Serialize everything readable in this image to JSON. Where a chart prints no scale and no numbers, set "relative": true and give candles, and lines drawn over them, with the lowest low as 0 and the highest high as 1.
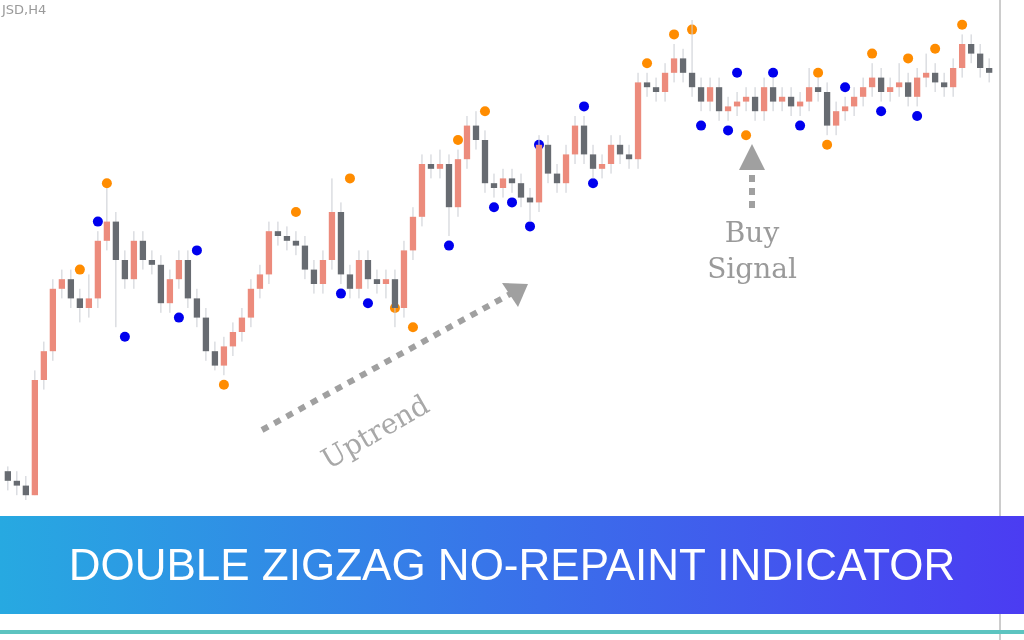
{
  "chart_data": {
    "type": "candlestick",
    "title": "DOUBLE ZIGZAG NO-REPAINT INDICATOR",
    "relative": true,
    "annotations": [
      "JSD,H4",
      "Uptrend",
      "Buy Signal"
    ],
    "colors": [
      "#676b71",
      "#676b71",
      "#676b71",
      "#ec8b7c",
      "#ec8b7c",
      "#ec8b7c",
      "#ec8b7c",
      "#676b71",
      "#676b71",
      "#ec8b7c",
      "#ec8b7c",
      "#ec8b7c",
      "#676b71",
      "#676b71",
      "#ec8b7c",
      "#676b71",
      "#676b71",
      "#676b71",
      "#ec8b7c",
      "#ec8b7c",
      "#676b71",
      "#676b71",
      "#676b71",
      "#676b71",
      "#ec8b7c",
      "#ec8b7c",
      "#ec8b7c",
      "#ec8b7c",
      "#ec8b7c",
      "#ec8b7c",
      "#676b71",
      "#676b71",
      "#676b71",
      "#676b71",
      "#676b71",
      "#ec8b7c",
      "#ec8b7c",
      "#676b71",
      "#676b71",
      "#ec8b7c",
      "#676b71",
      "#676b71",
      "#ec8b7c",
      "#676b71",
      "#ec8b7c",
      "#ec8b7c",
      "#ec8b7c",
      "#676b71",
      "#ec8b7c",
      "#676b71",
      "#ec8b7c",
      "#ec8b7c",
      "#676b71",
      "#676b71",
      "#676b71",
      "#ec8b7c",
      "#676b71",
      "#676b71",
      "#676b71",
      "#ec8b7c",
      "#676b71",
      "#676b71",
      "#ec8b7c",
      "#ec8b7c",
      "#676b71",
      "#676b71",
      "#ec8b7c",
      "#ec8b7c",
      "#676b71",
      "#676b71",
      "#ec8b7c",
      "#676b71",
      "#676b71",
      "#ec8b7c",
      "#ec8b7c",
      "#676b71",
      "#676b71",
      "#676b71",
      "#ec8b7c",
      "#676b71",
      "#ec8b7c",
      "#ec8b7c",
      "#ec8b7c",
      "#676b71",
      "#ec8b7c",
      "#676b71",
      "#ec8b7c",
      "#676b71",
      "#ec8b7c",
      "#ec8b7c",
      "#676b71",
      "#676b71",
      "#ec8b7c",
      "#ec8b7c",
      "#ec8b7c",
      "#ec8b7c",
      "#ec8b7c",
      "#676b71",
      "#ec8b7c",
      "#ec8b7c",
      "#676b71",
      "#ec8b7c",
      "#ec8b7c",
      "#676b71",
      "#676b71",
      "#ec8b7c",
      "#ec8b7c",
      "#676b71",
      "#676b71",
      "#676b71"
    ],
    "categories": [
      null,
      null,
      null,
      null,
      null,
      null,
      null,
      null,
      null,
      null,
      null,
      null,
      null,
      null,
      null,
      null,
      null,
      null,
      null,
      null,
      null,
      null,
      null,
      null,
      null,
      null,
      null,
      null,
      null,
      null,
      null,
      null,
      null,
      null,
      null,
      null,
      null,
      null,
      null,
      null,
      null,
      null,
      null,
      null,
      null,
      null,
      null,
      null,
      null,
      null,
      null,
      null,
      null,
      null,
      null,
      null,
      null,
      null,
      null,
      null,
      null,
      null,
      null,
      null,
      null,
      null,
      null,
      null,
      null,
      null,
      null,
      null,
      null,
      null,
      null,
      null,
      null,
      null,
      null,
      null,
      null,
      null,
      null,
      null,
      null,
      null,
      null,
      null,
      null,
      null,
      null,
      null,
      null,
      null,
      null,
      null,
      null,
      null,
      null,
      null,
      null,
      null,
      null,
      null,
      null,
      null,
      null,
      null,
      null,
      null
    ],
    "ohlc": [
      [
        0.06,
        0.07,
        0.02,
        0.04
      ],
      [
        0.04,
        0.06,
        0.01,
        0.03
      ],
      [
        0.03,
        0.05,
        0.0,
        0.01
      ],
      [
        0.01,
        0.27,
        0.01,
        0.25
      ],
      [
        0.25,
        0.33,
        0.23,
        0.31
      ],
      [
        0.31,
        0.46,
        0.29,
        0.44
      ],
      [
        0.44,
        0.48,
        0.42,
        0.46
      ],
      [
        0.46,
        0.48,
        0.4,
        0.42
      ],
      [
        0.42,
        0.44,
        0.37,
        0.4
      ],
      [
        0.4,
        0.47,
        0.38,
        0.42
      ],
      [
        0.42,
        0.56,
        0.4,
        0.54
      ],
      [
        0.54,
        0.65,
        0.52,
        0.58
      ],
      [
        0.58,
        0.6,
        0.36,
        0.5
      ],
      [
        0.5,
        0.52,
        0.44,
        0.46
      ],
      [
        0.46,
        0.56,
        0.44,
        0.54
      ],
      [
        0.54,
        0.56,
        0.48,
        0.5
      ],
      [
        0.5,
        0.52,
        0.47,
        0.49
      ],
      [
        0.49,
        0.51,
        0.39,
        0.41
      ],
      [
        0.41,
        0.48,
        0.39,
        0.46
      ],
      [
        0.46,
        0.52,
        0.44,
        0.5
      ],
      [
        0.5,
        0.52,
        0.4,
        0.42
      ],
      [
        0.42,
        0.44,
        0.36,
        0.38
      ],
      [
        0.38,
        0.4,
        0.29,
        0.31
      ],
      [
        0.31,
        0.33,
        0.27,
        0.28
      ],
      [
        0.28,
        0.34,
        0.26,
        0.32
      ],
      [
        0.32,
        0.37,
        0.3,
        0.35
      ],
      [
        0.35,
        0.4,
        0.33,
        0.38
      ],
      [
        0.38,
        0.46,
        0.36,
        0.44
      ],
      [
        0.44,
        0.49,
        0.42,
        0.47
      ],
      [
        0.47,
        0.58,
        0.45,
        0.56
      ],
      [
        0.56,
        0.58,
        0.53,
        0.55
      ],
      [
        0.55,
        0.57,
        0.52,
        0.54
      ],
      [
        0.54,
        0.56,
        0.51,
        0.53
      ],
      [
        0.53,
        0.55,
        0.46,
        0.48
      ],
      [
        0.48,
        0.5,
        0.43,
        0.45
      ],
      [
        0.45,
        0.52,
        0.43,
        0.5
      ],
      [
        0.5,
        0.67,
        0.48,
        0.6
      ],
      [
        0.6,
        0.62,
        0.45,
        0.47
      ],
      [
        0.47,
        0.49,
        0.42,
        0.44
      ],
      [
        0.44,
        0.52,
        0.42,
        0.5
      ],
      [
        0.5,
        0.52,
        0.44,
        0.46
      ],
      [
        0.46,
        0.48,
        0.43,
        0.45
      ],
      [
        0.45,
        0.48,
        0.42,
        0.46
      ],
      [
        0.46,
        0.48,
        0.36,
        0.4
      ],
      [
        0.4,
        0.54,
        0.38,
        0.52
      ],
      [
        0.52,
        0.61,
        0.5,
        0.59
      ],
      [
        0.59,
        0.72,
        0.57,
        0.7
      ],
      [
        0.7,
        0.72,
        0.67,
        0.69
      ],
      [
        0.69,
        0.73,
        0.67,
        0.7
      ],
      [
        0.7,
        0.72,
        0.55,
        0.61
      ],
      [
        0.61,
        0.73,
        0.59,
        0.71
      ],
      [
        0.71,
        0.8,
        0.69,
        0.78
      ],
      [
        0.78,
        0.81,
        0.73,
        0.75
      ],
      [
        0.75,
        0.77,
        0.64,
        0.66
      ],
      [
        0.66,
        0.68,
        0.63,
        0.65
      ],
      [
        0.65,
        0.69,
        0.63,
        0.67
      ],
      [
        0.67,
        0.69,
        0.64,
        0.66
      ],
      [
        0.66,
        0.68,
        0.61,
        0.63
      ],
      [
        0.63,
        0.65,
        0.58,
        0.62
      ],
      [
        0.62,
        0.76,
        0.6,
        0.74
      ],
      [
        0.74,
        0.76,
        0.66,
        0.68
      ],
      [
        0.68,
        0.7,
        0.64,
        0.66
      ],
      [
        0.66,
        0.74,
        0.64,
        0.72
      ],
      [
        0.72,
        0.8,
        0.7,
        0.78
      ],
      [
        0.78,
        0.8,
        0.7,
        0.72
      ],
      [
        0.72,
        0.74,
        0.67,
        0.69
      ],
      [
        0.69,
        0.72,
        0.67,
        0.7
      ],
      [
        0.7,
        0.76,
        0.68,
        0.74
      ],
      [
        0.74,
        0.76,
        0.7,
        0.72
      ],
      [
        0.72,
        0.74,
        0.69,
        0.71
      ],
      [
        0.71,
        0.89,
        0.69,
        0.87
      ],
      [
        0.87,
        0.89,
        0.84,
        0.86
      ],
      [
        0.86,
        0.88,
        0.83,
        0.85
      ],
      [
        0.85,
        0.91,
        0.83,
        0.89
      ],
      [
        0.89,
        0.95,
        0.87,
        0.92
      ],
      [
        0.92,
        0.94,
        0.87,
        0.89
      ],
      [
        0.89,
        1.0,
        0.84,
        0.86
      ],
      [
        0.86,
        0.88,
        0.81,
        0.83
      ],
      [
        0.83,
        0.88,
        0.81,
        0.86
      ],
      [
        0.86,
        0.88,
        0.79,
        0.81
      ],
      [
        0.81,
        0.84,
        0.79,
        0.82
      ],
      [
        0.82,
        0.85,
        0.8,
        0.83
      ],
      [
        0.83,
        0.86,
        0.81,
        0.84
      ],
      [
        0.84,
        0.86,
        0.79,
        0.81
      ],
      [
        0.81,
        0.88,
        0.79,
        0.86
      ],
      [
        0.86,
        0.88,
        0.81,
        0.83
      ],
      [
        0.83,
        0.86,
        0.81,
        0.84
      ],
      [
        0.84,
        0.86,
        0.8,
        0.82
      ],
      [
        0.82,
        0.85,
        0.8,
        0.83
      ],
      [
        0.83,
        0.9,
        0.81,
        0.86
      ],
      [
        0.86,
        0.88,
        0.83,
        0.85
      ],
      [
        0.85,
        0.87,
        0.76,
        0.78
      ],
      [
        0.78,
        0.83,
        0.76,
        0.81
      ],
      [
        0.81,
        0.84,
        0.79,
        0.82
      ],
      [
        0.82,
        0.86,
        0.8,
        0.84
      ],
      [
        0.84,
        0.88,
        0.82,
        0.86
      ],
      [
        0.86,
        0.91,
        0.84,
        0.88
      ],
      [
        0.88,
        0.9,
        0.83,
        0.85
      ],
      [
        0.85,
        0.88,
        0.83,
        0.86
      ],
      [
        0.86,
        0.91,
        0.84,
        0.87
      ],
      [
        0.87,
        0.89,
        0.82,
        0.84
      ],
      [
        0.84,
        0.9,
        0.82,
        0.88
      ],
      [
        0.88,
        0.93,
        0.86,
        0.89
      ],
      [
        0.89,
        0.91,
        0.85,
        0.87
      ],
      [
        0.87,
        0.89,
        0.84,
        0.86
      ],
      [
        0.86,
        0.92,
        0.84,
        0.9
      ],
      [
        0.9,
        0.97,
        0.88,
        0.95
      ],
      [
        0.95,
        0.97,
        0.91,
        0.93
      ],
      [
        0.93,
        0.95,
        0.88,
        0.9
      ],
      [
        0.9,
        0.92,
        0.87,
        0.89
      ]
    ],
    "series": [
      {
        "type": "scatter",
        "color": "#ff8c00",
        "values": [
          null,
          null,
          null,
          null,
          null,
          null,
          null,
          null,
          0.48,
          null,
          null,
          0.66,
          null,
          null,
          null,
          null,
          null,
          null,
          null,
          null,
          null,
          null,
          null,
          null,
          0.24,
          null,
          null,
          null,
          null,
          null,
          null,
          null,
          0.6,
          null,
          null,
          null,
          null,
          null,
          0.67,
          null,
          null,
          null,
          null,
          0.4,
          null,
          0.36,
          null,
          null,
          null,
          null,
          0.75,
          null,
          null,
          0.81,
          null,
          null,
          null,
          null,
          null,
          null,
          null,
          null,
          null,
          null,
          null,
          null,
          null,
          null,
          null,
          null,
          null,
          0.91,
          null,
          null,
          0.97,
          null,
          0.98,
          null,
          null,
          null,
          null,
          null,
          0.76,
          null,
          null,
          null,
          null,
          null,
          null,
          null,
          0.89,
          0.74,
          null,
          null,
          null,
          null,
          0.93,
          null,
          null,
          null,
          0.92,
          null,
          null,
          0.94,
          null,
          null,
          0.99,
          null,
          null,
          null
        ]
      },
      {
        "type": "scatter",
        "color": "#0000ee",
        "values": [
          null,
          null,
          null,
          null,
          null,
          null,
          null,
          null,
          null,
          null,
          0.58,
          null,
          null,
          0.34,
          null,
          null,
          null,
          null,
          null,
          0.38,
          null,
          0.52,
          null,
          null,
          null,
          null,
          null,
          null,
          null,
          null,
          null,
          null,
          null,
          null,
          null,
          null,
          null,
          0.43,
          null,
          null,
          0.41,
          null,
          null,
          null,
          null,
          null,
          null,
          null,
          null,
          0.53,
          null,
          null,
          null,
          null,
          0.61,
          null,
          0.62,
          null,
          0.57,
          0.74,
          null,
          null,
          null,
          null,
          0.82,
          0.66,
          null,
          null,
          null,
          null,
          null,
          null,
          null,
          null,
          null,
          null,
          null,
          0.78,
          null,
          null,
          0.77,
          0.89,
          null,
          null,
          null,
          0.89,
          null,
          null,
          0.78,
          null,
          null,
          null,
          null,
          0.86,
          null,
          null,
          null,
          0.81,
          null,
          null,
          null,
          0.8,
          null,
          null,
          null,
          null,
          null,
          null,
          null,
          null
        ]
      }
    ]
  }
}
